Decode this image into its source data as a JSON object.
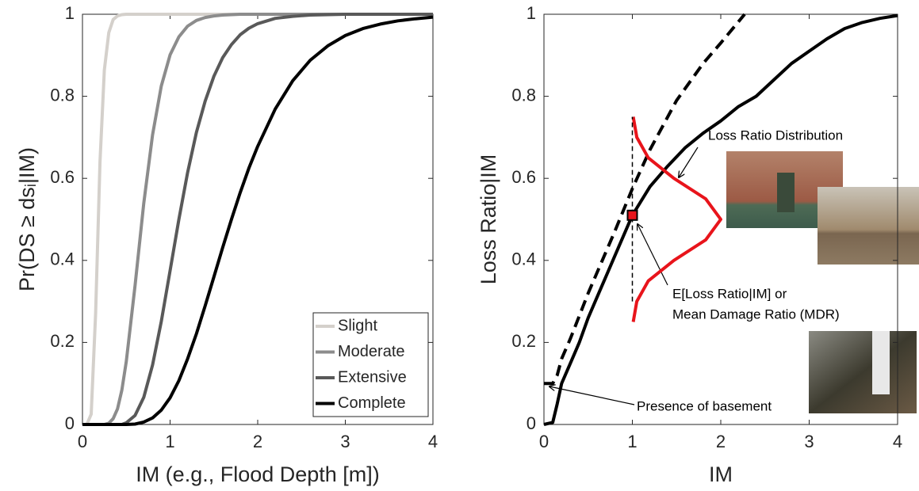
{
  "chart_data": [
    {
      "type": "line",
      "x_label": "IM (e.g., Flood Depth [m])",
      "y_label": "Pr(DS ≥ dsᵢ|IM)",
      "xlim": [
        0,
        4
      ],
      "ylim": [
        0,
        1
      ],
      "xticks": [
        0,
        1,
        2,
        3,
        4
      ],
      "yticks": [
        0,
        0.2,
        0.4,
        0.6,
        0.8,
        1
      ],
      "legend": "lower right",
      "x": [
        0,
        0.05,
        0.1,
        0.15,
        0.2,
        0.25,
        0.3,
        0.35,
        0.4,
        0.45,
        0.5,
        0.6,
        0.7,
        0.8,
        0.9,
        1.0,
        1.1,
        1.2,
        1.3,
        1.4,
        1.5,
        1.6,
        1.7,
        1.8,
        1.9,
        2.0,
        2.2,
        2.4,
        2.6,
        2.8,
        3.0,
        3.2,
        3.4,
        3.6,
        3.8,
        4.0
      ],
      "series": [
        {
          "name": "Slight",
          "color": "#d4d0cb",
          "values": [
            0,
            0,
            0.025,
            0.271,
            0.64,
            0.864,
            0.955,
            0.987,
            0.996,
            0.999,
            1,
            1,
            1,
            1,
            1,
            1,
            1,
            1,
            1,
            1,
            1,
            1,
            1,
            1,
            1,
            1,
            1,
            1,
            1,
            1,
            1,
            1,
            1,
            1,
            1,
            1
          ]
        },
        {
          "name": "Moderate",
          "color": "#8c8c8c",
          "values": [
            0,
            0,
            0,
            0,
            0,
            0,
            0.003,
            0.014,
            0.038,
            0.084,
            0.154,
            0.338,
            0.539,
            0.706,
            0.825,
            0.901,
            0.945,
            0.971,
            0.985,
            0.992,
            0.996,
            0.998,
            0.999,
            1,
            1,
            1,
            1,
            1,
            1,
            1,
            1,
            1,
            1,
            1,
            1,
            1
          ]
        },
        {
          "name": "Extensive",
          "color": "#595959",
          "values": [
            0,
            0,
            0,
            0,
            0,
            0,
            0,
            0,
            0,
            0,
            0.004,
            0.022,
            0.066,
            0.145,
            0.251,
            0.375,
            0.5,
            0.614,
            0.712,
            0.788,
            0.849,
            0.894,
            0.926,
            0.95,
            0.966,
            0.977,
            0.99,
            0.995,
            0.998,
            0.999,
            1,
            1,
            1,
            1,
            1,
            1
          ]
        },
        {
          "name": "Complete",
          "color": "#000000",
          "values": [
            0,
            0,
            0,
            0,
            0,
            0,
            0,
            0,
            0,
            0,
            0,
            0.001,
            0.006,
            0.016,
            0.035,
            0.065,
            0.107,
            0.16,
            0.221,
            0.289,
            0.36,
            0.431,
            0.5,
            0.565,
            0.625,
            0.678,
            0.769,
            0.838,
            0.888,
            0.923,
            0.948,
            0.965,
            0.976,
            0.984,
            0.989,
            0.993
          ]
        }
      ]
    },
    {
      "type": "line",
      "x_label": "IM",
      "y_label": "Loss Ratio|IM",
      "xlim": [
        0,
        4
      ],
      "ylim": [
        0,
        1
      ],
      "xticks": [
        0,
        1,
        2,
        3,
        4
      ],
      "yticks": [
        0,
        0.2,
        0.4,
        0.6,
        0.8,
        1
      ],
      "annotations": [
        "Loss Ratio Distribution",
        "E[Loss Ratio|IM] or",
        "Mean Damage Ratio (MDR)",
        "Presence of basement"
      ],
      "series": [
        {
          "color": "#000000",
          "x": [
            0,
            0.1,
            0.15,
            0.2,
            0.3,
            0.4,
            0.5,
            0.6,
            0.8,
            1.0,
            1.2,
            1.4,
            1.6,
            1.8,
            2.0,
            2.2,
            2.4,
            2.6,
            2.8,
            3.0,
            3.2,
            3.4,
            3.6,
            3.8,
            4.0
          ],
          "values": [
            0,
            0.005,
            0.05,
            0.1,
            0.15,
            0.2,
            0.26,
            0.31,
            0.41,
            0.51,
            0.58,
            0.63,
            0.675,
            0.71,
            0.74,
            0.775,
            0.8,
            0.84,
            0.88,
            0.91,
            0.94,
            0.965,
            0.98,
            0.99,
            0.997
          ]
        },
        {
          "color": "#000000",
          "dash": true,
          "x": [
            0,
            0.1,
            0.15,
            0.2,
            0.3,
            0.5,
            0.8,
            1.0,
            1.2,
            1.5,
            1.8,
            2.0,
            2.27
          ],
          "values": [
            0.1,
            0.1,
            0.12,
            0.16,
            0.21,
            0.32,
            0.47,
            0.575,
            0.67,
            0.79,
            0.88,
            0.93,
            1.0
          ]
        },
        {
          "color": "#e8141b",
          "x": [
            1.01,
            1.05,
            1.18,
            1.47,
            1.83,
            2.0,
            1.83,
            1.47,
            1.18,
            1.05,
            1.01
          ],
          "values": [
            0.25,
            0.3,
            0.35,
            0.4,
            0.45,
            0.5,
            0.55,
            0.6,
            0.65,
            0.7,
            0.75
          ]
        },
        {
          "color": "#000000",
          "thin": true,
          "dash": true,
          "x": [
            1,
            1
          ],
          "values": [
            0.3,
            0.75
          ]
        },
        {
          "color": "#e8141b",
          "marker": "square",
          "x": [
            1
          ],
          "values": [
            0.51
          ]
        }
      ]
    }
  ]
}
